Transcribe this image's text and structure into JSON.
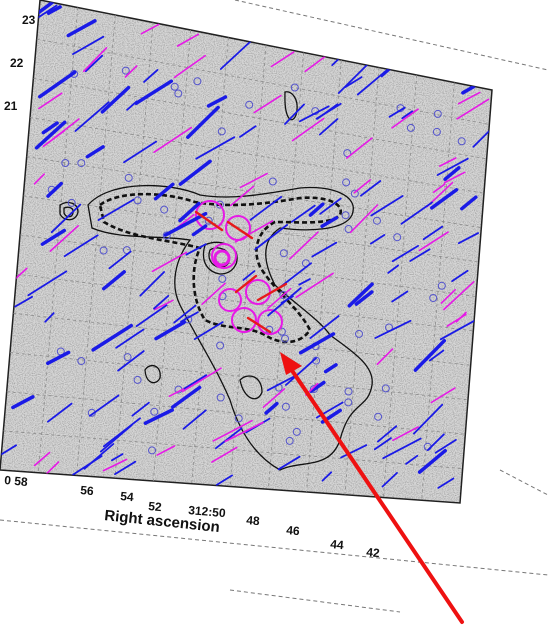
{
  "figure": {
    "x_axis_label": "Right ascension",
    "x_ticks": [
      "0 58",
      "56",
      "54",
      "52",
      "312:50",
      "48",
      "46",
      "44",
      "42"
    ],
    "y_ticks": [
      "23",
      "22",
      "21"
    ],
    "colors": {
      "paper": "#ffffff",
      "map_background": "#d6d6d6",
      "grid": "#8a8a8a",
      "contour": "#111111",
      "vector_blue": "#1a1ae6",
      "vector_magenta": "#e61ae6",
      "vector_red": "#e61a1a",
      "arrow": "#ee1111"
    },
    "annotation": {
      "type": "arrow",
      "color": "#ee1111",
      "points_to": "red polarization vectors near cloud core"
    }
  }
}
